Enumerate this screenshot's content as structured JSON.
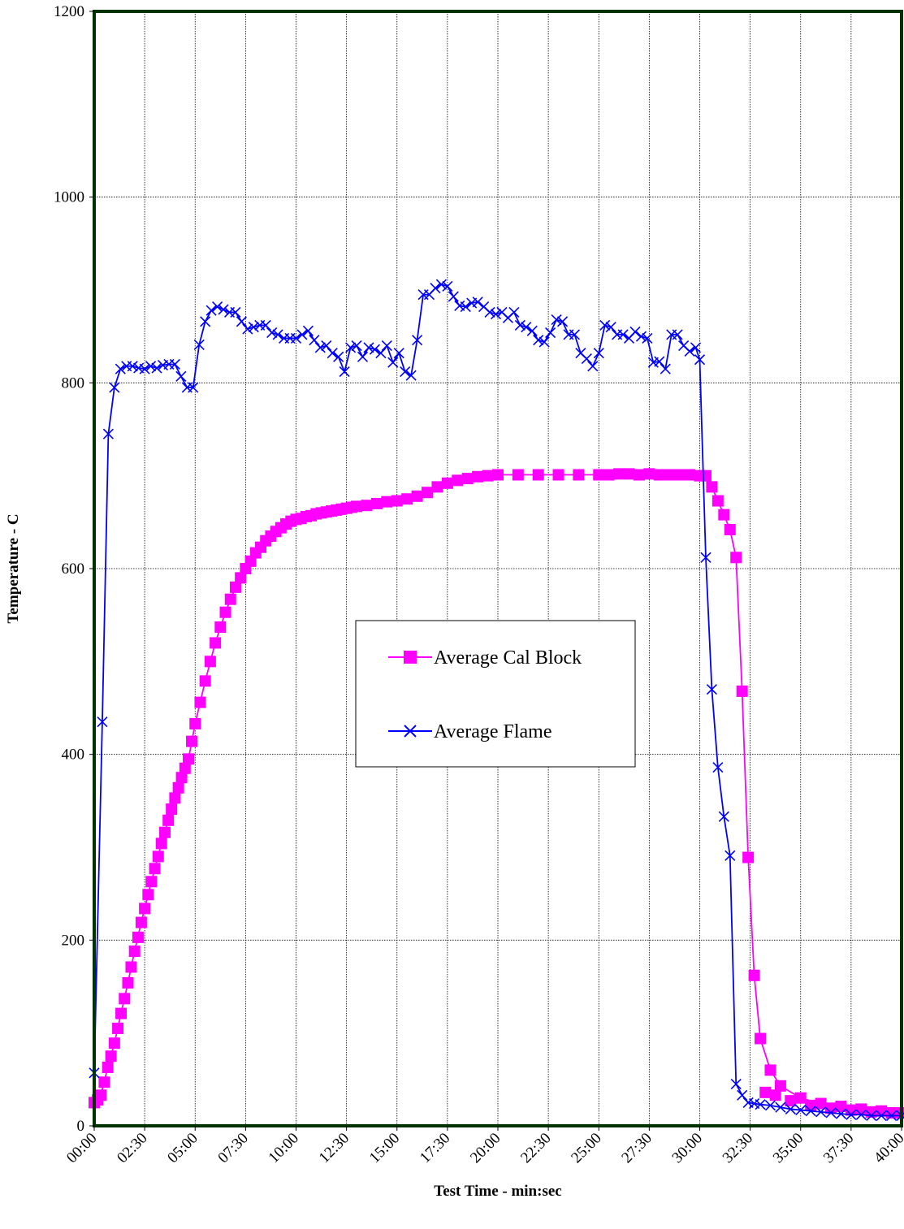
{
  "chart_data": {
    "type": "line",
    "title": "",
    "xlabel": "Test Time - min:sec",
    "ylabel": "Temperature - C",
    "x_unit": "minutes",
    "xlim": [
      0,
      40
    ],
    "ylim": [
      0,
      1200
    ],
    "x_tick_labels": [
      "00:00",
      "02:30",
      "05:00",
      "07:30",
      "10:00",
      "12:30",
      "15:00",
      "17:30",
      "20:00",
      "22:30",
      "25:00",
      "27:30",
      "30:00",
      "32:30",
      "35:00",
      "37:30",
      "40:00"
    ],
    "y_ticks": [
      0,
      200,
      400,
      600,
      800,
      1000,
      1200
    ],
    "grid": true,
    "legend": "center",
    "colors": {
      "plot_border": "#003300",
      "grid": "#000000"
    },
    "series": [
      {
        "name": "Average Cal Block",
        "color": "#ff00ff",
        "marker": "square",
        "x": [
          0.0,
          0.33,
          0.67,
          1.0,
          1.33,
          1.67,
          2.0,
          2.33,
          2.67,
          3.0,
          3.33,
          3.67,
          4.0,
          4.33,
          4.67,
          5.0,
          5.5,
          6.0,
          6.5,
          7.0,
          7.5,
          8.0,
          8.5,
          9.0,
          9.5,
          10.0,
          10.5,
          11.0,
          11.5,
          12.0,
          12.5,
          13.0,
          14.0,
          15.0,
          15.5,
          16.0,
          17.0,
          18.0,
          19.0,
          20.0,
          22.0,
          24.0,
          25.0,
          26.0,
          27.0,
          28.0,
          29.0,
          30.0,
          30.3,
          30.6,
          30.9,
          31.2,
          31.5,
          31.8,
          32.1,
          32.4,
          32.7,
          33.0,
          33.5,
          34.0,
          35.0,
          36.0,
          37.0,
          38.0,
          39.0,
          40.0
        ],
        "y": [
          25,
          33,
          63,
          89,
          121,
          154,
          188,
          219,
          249,
          277,
          304,
          329,
          353,
          375,
          395,
          433,
          479,
          520,
          553,
          580,
          600,
          617,
          630,
          640,
          648,
          653,
          656,
          659,
          661,
          663,
          665,
          667,
          670,
          673,
          675,
          678,
          688,
          695,
          699,
          701,
          701,
          701,
          701,
          702,
          701,
          701,
          701,
          700,
          700,
          688,
          673,
          658,
          642,
          612,
          468,
          289,
          162,
          94,
          60,
          43,
          30,
          24,
          21,
          18,
          16,
          14
        ],
        "x_extra": [
          0.17,
          0.5,
          0.83,
          1.17,
          1.5,
          1.83,
          2.17,
          2.5,
          2.83,
          3.17,
          3.5,
          3.83,
          4.17,
          4.5,
          4.83,
          5.25,
          5.75,
          6.25,
          6.75,
          7.25,
          7.75,
          8.25,
          8.75,
          9.25,
          9.75,
          10.25,
          10.75,
          11.25,
          11.75,
          12.25,
          12.75,
          13.5,
          14.5,
          16.5,
          17.5,
          18.5,
          19.5,
          21,
          23,
          25.5,
          26.5,
          27.5,
          28.5,
          29.5,
          33.25,
          33.75,
          34.5,
          35.5,
          36.5,
          37.5,
          38.5,
          39.5
        ],
        "y_extra": [
          28,
          47,
          75,
          105,
          137,
          171,
          203,
          234,
          263,
          290,
          316,
          341,
          364,
          385,
          414,
          456,
          500,
          537,
          567,
          590,
          608,
          623,
          635,
          644,
          651,
          654,
          657,
          660,
          662,
          664,
          666,
          668,
          672,
          682,
          692,
          697,
          700,
          701,
          701,
          701,
          702,
          702,
          701,
          701,
          36,
          33,
          27,
          22,
          19,
          17,
          15,
          14
        ]
      },
      {
        "name": "Average Flame",
        "color": "#0000ff",
        "marker": "x",
        "x": [
          0.0,
          0.4,
          0.7,
          1.0,
          1.3,
          1.6,
          1.9,
          2.2,
          2.5,
          2.8,
          3.1,
          3.4,
          3.7,
          4.0,
          4.3,
          4.6,
          4.9,
          5.2,
          5.5,
          5.8,
          6.1,
          6.4,
          6.7,
          7.0,
          7.3,
          7.6,
          7.9,
          8.2,
          8.5,
          8.8,
          9.1,
          9.4,
          9.7,
          10.0,
          10.3,
          10.6,
          10.9,
          11.2,
          11.5,
          11.8,
          12.1,
          12.4,
          12.7,
          13.0,
          13.3,
          13.6,
          13.9,
          14.2,
          14.5,
          14.8,
          15.1,
          15.4,
          15.7,
          16.0,
          16.3,
          16.6,
          16.9,
          17.2,
          17.5,
          17.8,
          18.1,
          18.4,
          18.7,
          19.0,
          19.3,
          19.6,
          19.9,
          20.2,
          20.5,
          20.8,
          21.1,
          21.4,
          21.7,
          22.0,
          22.3,
          22.6,
          22.9,
          23.2,
          23.5,
          23.8,
          24.1,
          24.4,
          24.7,
          25.0,
          25.3,
          25.6,
          25.9,
          26.2,
          26.5,
          26.8,
          27.1,
          27.4,
          27.7,
          28.0,
          28.3,
          28.6,
          28.9,
          29.2,
          29.5,
          29.8,
          30.0,
          30.3,
          30.6,
          30.9,
          31.2,
          31.5,
          31.8,
          32.1,
          32.4,
          32.7,
          33.0,
          33.5,
          34.0,
          34.5,
          35.0,
          35.5,
          36.0,
          36.5,
          37.0,
          37.5,
          38.0,
          38.5,
          39.0,
          39.5,
          40.0
        ],
        "y": [
          57,
          435,
          745,
          795,
          815,
          818,
          818,
          816,
          815,
          818,
          816,
          819,
          820,
          820,
          807,
          795,
          795,
          841,
          866,
          878,
          882,
          879,
          876,
          876,
          866,
          858,
          860,
          862,
          862,
          854,
          852,
          848,
          848,
          848,
          852,
          856,
          846,
          838,
          840,
          832,
          828,
          812,
          838,
          840,
          828,
          838,
          836,
          832,
          840,
          822,
          832,
          812,
          808,
          846,
          895,
          895,
          902,
          906,
          904,
          893,
          883,
          882,
          886,
          887,
          882,
          876,
          874,
          876,
          870,
          876,
          862,
          860,
          856,
          846,
          844,
          854,
          868,
          866,
          852,
          852,
          832,
          826,
          818,
          832,
          862,
          860,
          852,
          852,
          848,
          855,
          850,
          848,
          822,
          823,
          815,
          852,
          852,
          840,
          834,
          838,
          825,
          612,
          470,
          386,
          333,
          291,
          45,
          33,
          25,
          24,
          23,
          22,
          20,
          18,
          17,
          16,
          15,
          14,
          13,
          12,
          12,
          11,
          11,
          11,
          11
        ]
      }
    ]
  }
}
